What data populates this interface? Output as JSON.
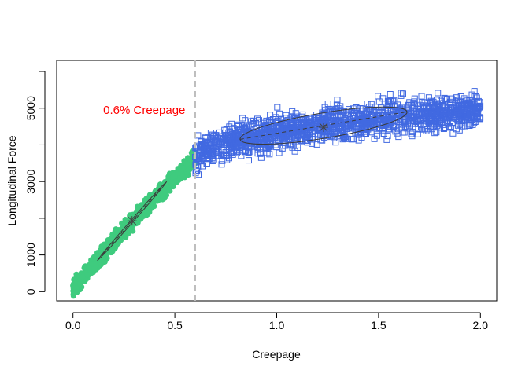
{
  "chart_data": {
    "type": "scatter",
    "title": "",
    "xlabel": "Creepage",
    "ylabel": "Longitudinal Force",
    "xlim": [
      -0.08,
      2.08
    ],
    "ylim": [
      -250,
      6300
    ],
    "x_ticks": [
      0.0,
      0.5,
      1.0,
      1.5,
      2.0
    ],
    "x_tick_labels": [
      "0.0",
      "0.5",
      "1.0",
      "1.5",
      "2.0"
    ],
    "y_ticks": [
      0,
      1000,
      3000,
      5000
    ],
    "y_tick_labels": [
      "0",
      "1000",
      "3000",
      "5000"
    ],
    "threshold": {
      "x": 0.6,
      "label": "0.6% Creepage",
      "color": "#ff0000",
      "line_color": "#bebebe"
    },
    "series": [
      {
        "marker": "filled-circle",
        "color": "#3fcb7e",
        "x_range": [
          0.0,
          0.6
        ],
        "trend": [
          [
            0.0,
            100
          ],
          [
            0.1,
            700
          ],
          [
            0.2,
            1350
          ],
          [
            0.3,
            1950
          ],
          [
            0.4,
            2550
          ],
          [
            0.5,
            3100
          ],
          [
            0.6,
            3650
          ]
        ],
        "spread": 110,
        "mean": [
          0.29,
          1930
        ],
        "ellipse": {
          "from": [
            0.12,
            850
          ],
          "to": [
            0.46,
            3000
          ],
          "half_width": 0.012
        }
      },
      {
        "marker": "open-square",
        "color": "#4169e1",
        "x_range": [
          0.6,
          2.0
        ],
        "trend": [
          [
            0.6,
            3700
          ],
          [
            0.7,
            3950
          ],
          [
            0.8,
            4100
          ],
          [
            1.0,
            4350
          ],
          [
            1.2,
            4520
          ],
          [
            1.5,
            4700
          ],
          [
            1.8,
            4850
          ],
          [
            2.0,
            4950
          ]
        ],
        "spread": 230,
        "mean": [
          1.23,
          4480
        ],
        "ellipse": {
          "from": [
            0.82,
            4150
          ],
          "to": [
            1.64,
            4900
          ],
          "half_width": 0.075
        }
      }
    ],
    "grid": false,
    "legend": "none"
  }
}
